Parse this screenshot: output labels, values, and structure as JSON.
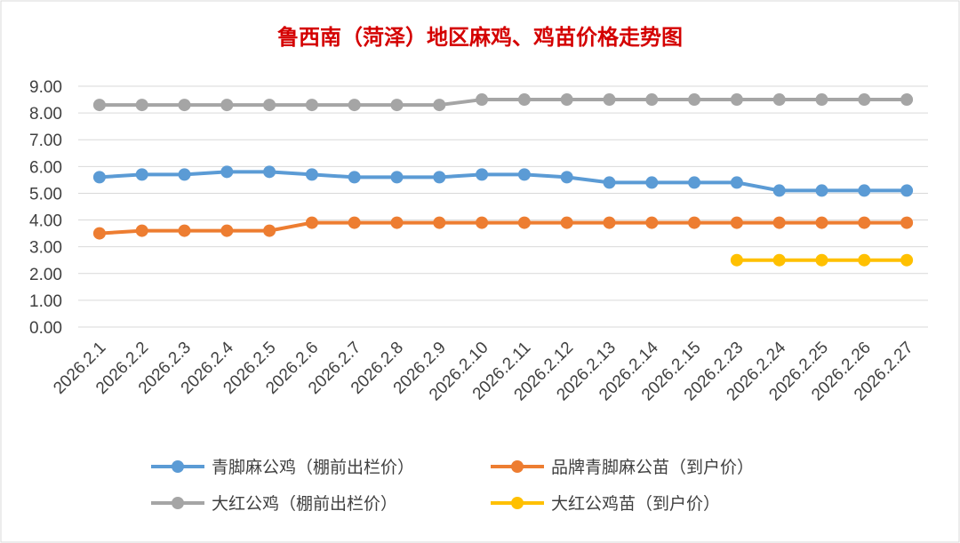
{
  "chart_data": {
    "type": "line",
    "title": "鲁西南（菏泽）地区麻鸡、鸡苗价格走势图",
    "xlabel": "",
    "ylabel": "",
    "ylim": [
      0,
      9
    ],
    "ytick_step": 1,
    "ytick_labels": [
      "0.00",
      "1.00",
      "2.00",
      "3.00",
      "4.00",
      "5.00",
      "6.00",
      "7.00",
      "8.00",
      "9.00"
    ],
    "grid": true,
    "legend": "bottom",
    "categories": [
      "2026.2.1",
      "2026.2.2",
      "2026.2.3",
      "2026.2.4",
      "2026.2.5",
      "2026.2.6",
      "2026.2.7",
      "2026.2.8",
      "2026.2.9",
      "2026.2.10",
      "2026.2.11",
      "2026.2.12",
      "2026.2.13",
      "2026.2.14",
      "2026.2.15",
      "2026.2.23",
      "2026.2.24",
      "2026.2.25",
      "2026.2.26",
      "2026.2.27"
    ],
    "series": [
      {
        "name": "青脚麻公鸡（棚前出栏价）",
        "color": "#5b9bd5",
        "values": [
          5.6,
          5.7,
          5.7,
          5.8,
          5.8,
          5.7,
          5.6,
          5.6,
          5.6,
          5.7,
          5.7,
          5.6,
          5.4,
          5.4,
          5.4,
          5.4,
          5.1,
          5.1,
          5.1,
          5.1
        ]
      },
      {
        "name": "品牌青脚麻公苗（到户价）",
        "color": "#ed7d31",
        "values": [
          3.5,
          3.6,
          3.6,
          3.6,
          3.6,
          3.9,
          3.9,
          3.9,
          3.9,
          3.9,
          3.9,
          3.9,
          3.9,
          3.9,
          3.9,
          3.9,
          3.9,
          3.9,
          3.9,
          3.9
        ]
      },
      {
        "name": "大红公鸡（棚前出栏价）",
        "color": "#a5a5a5",
        "values": [
          8.3,
          8.3,
          8.3,
          8.3,
          8.3,
          8.3,
          8.3,
          8.3,
          8.3,
          8.5,
          8.5,
          8.5,
          8.5,
          8.5,
          8.5,
          8.5,
          8.5,
          8.5,
          8.5,
          8.5
        ]
      },
      {
        "name": "大红公鸡苗（到户价）",
        "color": "#ffc000",
        "values": [
          null,
          null,
          null,
          null,
          null,
          null,
          null,
          null,
          null,
          null,
          null,
          null,
          null,
          null,
          null,
          2.5,
          2.5,
          2.5,
          2.5,
          2.5
        ]
      }
    ]
  }
}
